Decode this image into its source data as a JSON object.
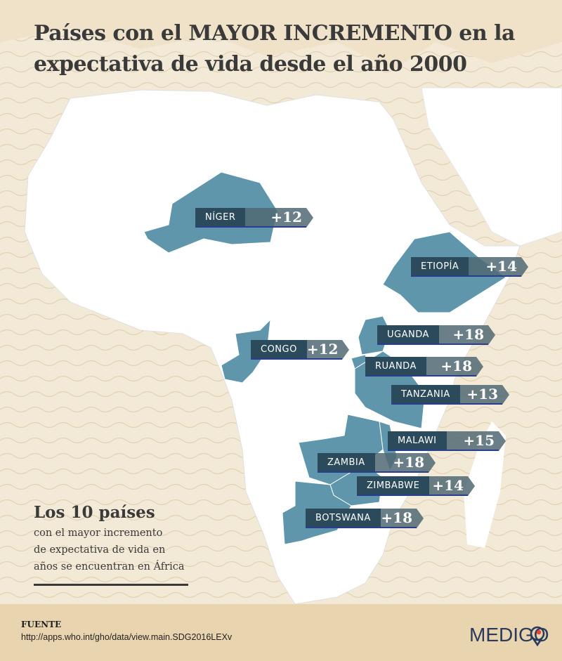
{
  "title": {
    "line1": "Países con el MAYOR INCREMENTO en la",
    "line2": "expectativa de vida desde el año 2000"
  },
  "colors": {
    "highlight_country": "#5f96ab",
    "label_dark": "#2b4b5d",
    "label_value": "#50697a",
    "underline": "#2a3d8f",
    "land": "#ffffff",
    "sea": "#f3e9d7"
  },
  "countries": [
    {
      "name": "NÍGER",
      "value": "+12"
    },
    {
      "name": "ETIOPÍA",
      "value": "+14"
    },
    {
      "name": "CONGO",
      "value": "+12"
    },
    {
      "name": "UGANDA",
      "value": "+18"
    },
    {
      "name": "RUANDA",
      "value": "+18"
    },
    {
      "name": "TANZANIA",
      "value": "+13"
    },
    {
      "name": "MALAWI",
      "value": "+15"
    },
    {
      "name": "ZAMBIA",
      "value": "+18"
    },
    {
      "name": "ZIMBABWE",
      "value": "+14"
    },
    {
      "name": "BOTSWANA",
      "value": "+18"
    }
  ],
  "side": {
    "heading": "Los 10 países",
    "line1": "con el mayor incremento",
    "line2": "de expectativa de vida en",
    "line3": "años se encuentran en África"
  },
  "footer": {
    "label": "FUENTE",
    "url": "http://apps.who.int/gho/data/view.main.SDG2016LEXv",
    "logo": "MEDIGO"
  }
}
